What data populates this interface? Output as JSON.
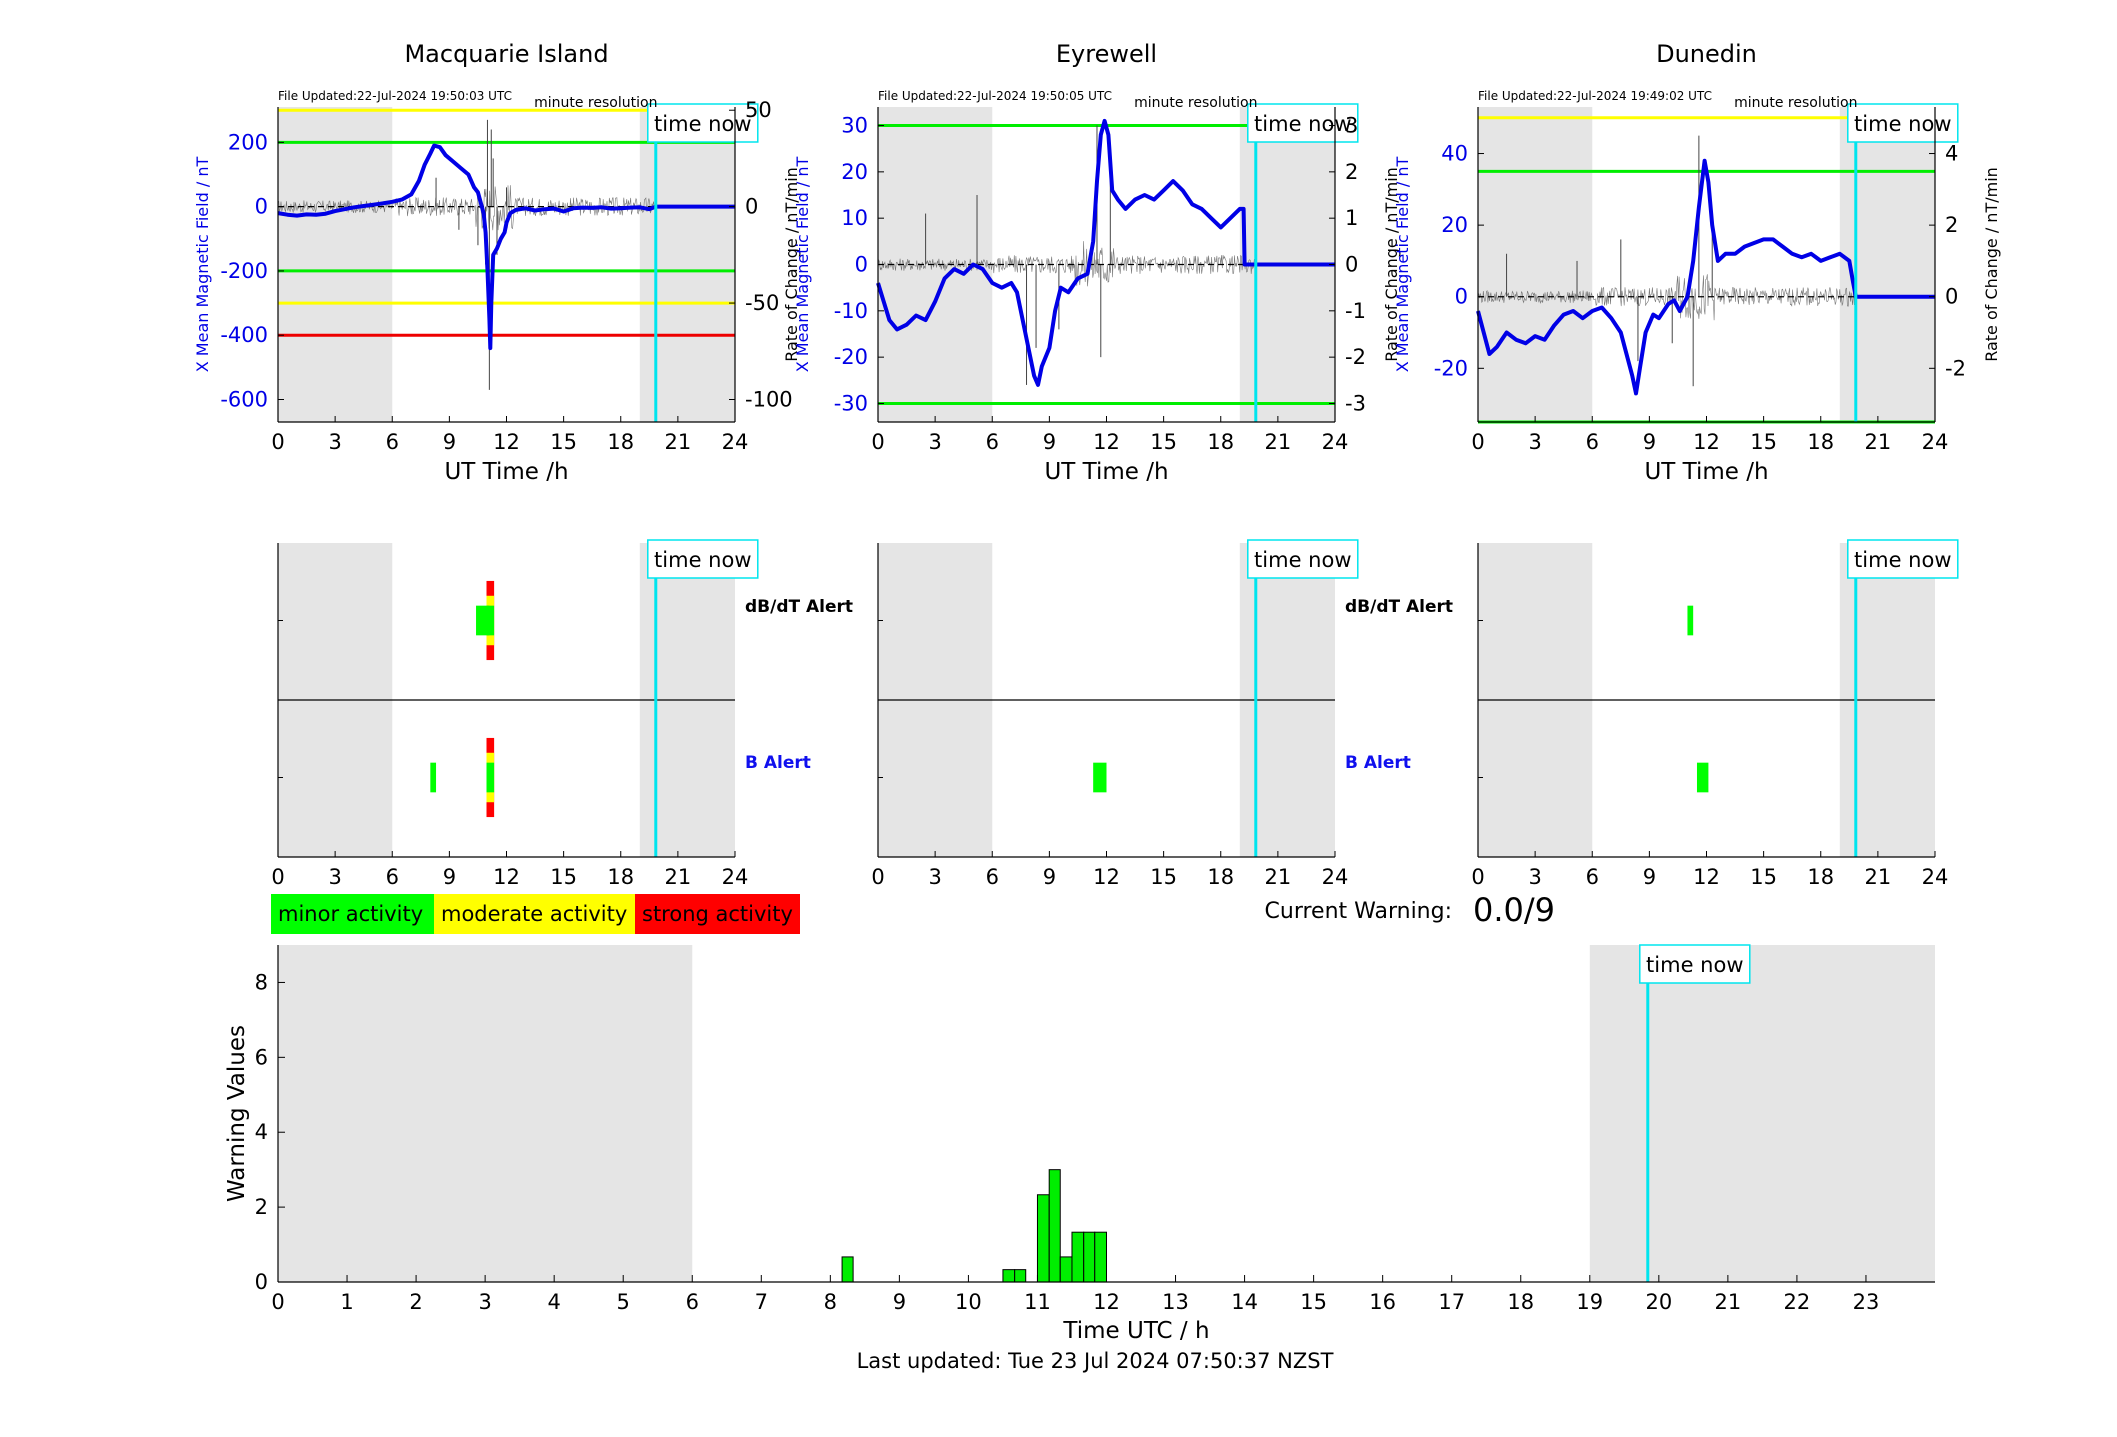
{
  "page": {
    "last_updated": "Last updated: Tue 23 Jul 2024 07:50:37 NZST",
    "current_warning_label": "Current Warning:",
    "current_warning_value": "0.0/9"
  },
  "labels": {
    "time_now": "time now",
    "minute_resolution": "minute resolution",
    "dbdt_alert": "dB/dT Alert",
    "b_alert": "B Alert",
    "ut_time_label": "UT Time /h",
    "rate_label": "Rate of Change / nT/min",
    "field_label": "X Mean Magnetic Field / nT"
  },
  "legend": [
    {
      "label": "minor activity",
      "color": "#00ff00"
    },
    {
      "label": "moderate activity",
      "color": "#ffff00"
    },
    {
      "label": "strong activity",
      "color": "#ff0000"
    }
  ],
  "colors": {
    "field_line": "#0000e6",
    "shade": "#e5e5e5",
    "time_now": "#00e5ee",
    "threshold_green": "#00ee00",
    "threshold_yellow": "#ffff00",
    "threshold_red": "#ee0000",
    "bar_fill": "#00ee00"
  },
  "stations": [
    {
      "name": "Macquarie Island",
      "file_updated": "File Updated:22-Jul-2024 19:50:03 UTC",
      "xlim": [
        0,
        24
      ],
      "xticks": [
        0,
        3,
        6,
        9,
        12,
        15,
        18,
        21,
        24
      ],
      "ylim_field": [
        -670,
        310
      ],
      "yticks_field": [
        200,
        0,
        -200,
        -400,
        -600
      ],
      "ylim_rate": [
        -111.67,
        51.67
      ],
      "yticks_rate": [
        50,
        0,
        -50,
        -100
      ],
      "thresholds_field": [
        {
          "value": 300,
          "color": "yellow"
        },
        {
          "value": 200,
          "color": "green"
        },
        {
          "value": -200,
          "color": "green"
        },
        {
          "value": -300,
          "color": "yellow"
        },
        {
          "value": -400,
          "color": "red"
        }
      ],
      "shade_ranges": [
        [
          0,
          6
        ],
        [
          19.0,
          24
        ]
      ],
      "time_now": 19.84,
      "field_series": [
        [
          0,
          -20
        ],
        [
          0.5,
          -25
        ],
        [
          1,
          -28
        ],
        [
          1.5,
          -24
        ],
        [
          2,
          -25
        ],
        [
          2.5,
          -22
        ],
        [
          3,
          -14
        ],
        [
          3.5,
          -8
        ],
        [
          4,
          -2
        ],
        [
          4.5,
          2
        ],
        [
          5,
          6
        ],
        [
          5.5,
          10
        ],
        [
          6,
          15
        ],
        [
          6.5,
          22
        ],
        [
          7,
          38
        ],
        [
          7.4,
          80
        ],
        [
          7.7,
          130
        ],
        [
          8,
          165
        ],
        [
          8.2,
          190
        ],
        [
          8.5,
          185
        ],
        [
          8.8,
          160
        ],
        [
          9.2,
          140
        ],
        [
          9.6,
          120
        ],
        [
          10,
          100
        ],
        [
          10.3,
          60
        ],
        [
          10.5,
          45
        ],
        [
          10.8,
          -20
        ],
        [
          10.9,
          -80
        ],
        [
          11.0,
          -200
        ],
        [
          11.1,
          -350
        ],
        [
          11.15,
          -440
        ],
        [
          11.2,
          -300
        ],
        [
          11.3,
          -150
        ],
        [
          11.5,
          -130
        ],
        [
          11.7,
          -100
        ],
        [
          11.9,
          -80
        ],
        [
          12,
          -50
        ],
        [
          12.2,
          -20
        ],
        [
          12.5,
          -10
        ],
        [
          13,
          -5
        ],
        [
          13.5,
          -12
        ],
        [
          14,
          -8
        ],
        [
          14.5,
          -6
        ],
        [
          15,
          -15
        ],
        [
          15.5,
          -5
        ],
        [
          16,
          -3
        ],
        [
          16.5,
          -4
        ],
        [
          17,
          -2
        ],
        [
          17.5,
          -6
        ],
        [
          18,
          -5
        ],
        [
          18.5,
          -3
        ],
        [
          19,
          -2
        ],
        [
          19.5,
          -8
        ],
        [
          19.84,
          0
        ],
        [
          24,
          0
        ]
      ],
      "rate_spikes": [
        [
          11.0,
          45
        ],
        [
          11.1,
          -95
        ],
        [
          11.2,
          40
        ],
        [
          10.9,
          -30
        ],
        [
          11.3,
          25
        ],
        [
          10.5,
          -20
        ],
        [
          11.5,
          -25
        ],
        [
          8.3,
          15
        ],
        [
          9.5,
          -12
        ],
        [
          12,
          10
        ]
      ],
      "dbdt_alert_blocks": [
        {
          "t0": 10.4,
          "t1": 11.1,
          "level": "minor",
          "h": 0.45
        },
        {
          "t0": 10.95,
          "t1": 11.35,
          "level": "minor",
          "h": 0.45
        },
        {
          "t0": 10.95,
          "t1": 11.35,
          "level": "moderate",
          "h": 0.75
        },
        {
          "t0": 10.95,
          "t1": 11.35,
          "level": "strong",
          "h": 1.2
        }
      ],
      "b_alert_blocks": [
        {
          "t0": 8.0,
          "t1": 8.3,
          "level": "minor",
          "h": 0.45
        },
        {
          "t0": 10.95,
          "t1": 11.35,
          "level": "minor",
          "h": 0.45
        },
        {
          "t0": 10.95,
          "t1": 11.35,
          "level": "moderate",
          "h": 0.75
        },
        {
          "t0": 10.95,
          "t1": 11.35,
          "level": "strong",
          "h": 1.2
        }
      ],
      "show_alert_labels": true
    },
    {
      "name": "Eyrewell",
      "file_updated": "File Updated:22-Jul-2024 19:50:05 UTC",
      "xlim": [
        0,
        24
      ],
      "xticks": [
        0,
        3,
        6,
        9,
        12,
        15,
        18,
        21,
        24
      ],
      "ylim_field": [
        -34,
        34
      ],
      "yticks_field": [
        30,
        20,
        10,
        0,
        -10,
        -20,
        -30
      ],
      "ylim_rate": [
        -3.4,
        3.4
      ],
      "yticks_rate": [
        3,
        2,
        1,
        0,
        -1,
        -2,
        -3
      ],
      "thresholds_field": [
        {
          "value": 30,
          "color": "green"
        },
        {
          "value": -30,
          "color": "green"
        }
      ],
      "shade_ranges": [
        [
          0,
          6
        ],
        [
          19.0,
          24
        ]
      ],
      "time_now": 19.84,
      "field_series": [
        [
          0,
          -4
        ],
        [
          0.3,
          -8
        ],
        [
          0.6,
          -12
        ],
        [
          1,
          -14
        ],
        [
          1.5,
          -13
        ],
        [
          2,
          -11
        ],
        [
          2.5,
          -12
        ],
        [
          3,
          -8
        ],
        [
          3.5,
          -3
        ],
        [
          4,
          -1
        ],
        [
          4.5,
          -2
        ],
        [
          5,
          0
        ],
        [
          5.5,
          -1
        ],
        [
          6,
          -4
        ],
        [
          6.5,
          -5
        ],
        [
          7,
          -4
        ],
        [
          7.3,
          -6
        ],
        [
          7.6,
          -12
        ],
        [
          7.9,
          -18
        ],
        [
          8.2,
          -24
        ],
        [
          8.4,
          -26
        ],
        [
          8.6,
          -22
        ],
        [
          9,
          -18
        ],
        [
          9.3,
          -10
        ],
        [
          9.6,
          -5
        ],
        [
          10,
          -6
        ],
        [
          10.5,
          -3
        ],
        [
          11,
          -2
        ],
        [
          11.3,
          5
        ],
        [
          11.5,
          18
        ],
        [
          11.7,
          28
        ],
        [
          11.9,
          31
        ],
        [
          12.1,
          28
        ],
        [
          12.3,
          16
        ],
        [
          12.6,
          14
        ],
        [
          13,
          12
        ],
        [
          13.5,
          14
        ],
        [
          14,
          15
        ],
        [
          14.5,
          14
        ],
        [
          15,
          16
        ],
        [
          15.5,
          18
        ],
        [
          16,
          16
        ],
        [
          16.5,
          13
        ],
        [
          17,
          12
        ],
        [
          17.5,
          10
        ],
        [
          18,
          8
        ],
        [
          18.5,
          10
        ],
        [
          19,
          12
        ],
        [
          19.2,
          12
        ],
        [
          19.25,
          0
        ],
        [
          24,
          0
        ]
      ],
      "rate_spikes": [
        [
          11.5,
          3.0
        ],
        [
          11.7,
          -2.0
        ],
        [
          8.3,
          -1.8
        ],
        [
          2.5,
          1.1
        ],
        [
          7.8,
          -2.6
        ],
        [
          12.2,
          2.2
        ],
        [
          5.2,
          1.5
        ],
        [
          9.5,
          -1.4
        ]
      ],
      "dbdt_alert_blocks": [],
      "b_alert_blocks": [
        {
          "t0": 11.3,
          "t1": 12.0,
          "level": "minor",
          "h": 0.45
        }
      ],
      "show_alert_labels": true
    },
    {
      "name": "Dunedin",
      "file_updated": "File Updated:22-Jul-2024 19:49:02 UTC",
      "xlim": [
        0,
        24
      ],
      "xticks": [
        0,
        3,
        6,
        9,
        12,
        15,
        18,
        21,
        24
      ],
      "ylim_field": [
        -35,
        53
      ],
      "yticks_field": [
        40,
        20,
        0,
        -20
      ],
      "ylim_rate": [
        -3.5,
        5.3
      ],
      "yticks_rate": [
        4,
        2,
        0,
        -2
      ],
      "thresholds_field": [
        {
          "value": 50,
          "color": "yellow"
        },
        {
          "value": 35,
          "color": "green"
        },
        {
          "value": -35,
          "color": "green"
        }
      ],
      "shade_ranges": [
        [
          0,
          6
        ],
        [
          19.0,
          24
        ]
      ],
      "time_now": 19.84,
      "field_series": [
        [
          0,
          -4
        ],
        [
          0.3,
          -10
        ],
        [
          0.6,
          -16
        ],
        [
          1,
          -14
        ],
        [
          1.5,
          -10
        ],
        [
          2,
          -12
        ],
        [
          2.5,
          -13
        ],
        [
          3,
          -11
        ],
        [
          3.5,
          -12
        ],
        [
          4,
          -8
        ],
        [
          4.5,
          -5
        ],
        [
          5,
          -4
        ],
        [
          5.5,
          -6
        ],
        [
          6,
          -4
        ],
        [
          6.5,
          -3
        ],
        [
          7,
          -6
        ],
        [
          7.5,
          -10
        ],
        [
          7.8,
          -16
        ],
        [
          8.1,
          -22
        ],
        [
          8.3,
          -27
        ],
        [
          8.5,
          -20
        ],
        [
          8.8,
          -10
        ],
        [
          9.2,
          -5
        ],
        [
          9.5,
          -6
        ],
        [
          10,
          -2
        ],
        [
          10.3,
          -1
        ],
        [
          10.6,
          -4
        ],
        [
          11,
          0
        ],
        [
          11.3,
          10
        ],
        [
          11.6,
          25
        ],
        [
          11.9,
          38
        ],
        [
          12.1,
          32
        ],
        [
          12.3,
          20
        ],
        [
          12.6,
          10
        ],
        [
          13,
          12
        ],
        [
          13.5,
          12
        ],
        [
          14,
          14
        ],
        [
          14.5,
          15
        ],
        [
          15,
          16
        ],
        [
          15.5,
          16
        ],
        [
          16,
          14
        ],
        [
          16.5,
          12
        ],
        [
          17,
          11
        ],
        [
          17.5,
          12
        ],
        [
          18,
          10
        ],
        [
          18.5,
          11
        ],
        [
          19,
          12
        ],
        [
          19.5,
          10
        ],
        [
          19.7,
          4
        ],
        [
          19.84,
          0
        ],
        [
          24,
          0
        ]
      ],
      "rate_spikes": [
        [
          11.6,
          4.5
        ],
        [
          11.3,
          -2.5
        ],
        [
          8.4,
          -1.8
        ],
        [
          1.5,
          1.2
        ],
        [
          7.5,
          1.6
        ],
        [
          12.3,
          2.4
        ],
        [
          10.2,
          -1.3
        ],
        [
          5.2,
          1.0
        ]
      ],
      "dbdt_alert_blocks": [
        {
          "t0": 11.0,
          "t1": 11.3,
          "level": "minor",
          "h": 0.45
        }
      ],
      "b_alert_blocks": [
        {
          "t0": 11.5,
          "t1": 12.1,
          "level": "minor",
          "h": 0.45
        }
      ],
      "show_alert_labels": false
    }
  ],
  "chart_data": [
    {
      "type": "bar",
      "title": "Warning Values",
      "xlabel": "Time UTC / h",
      "ylabel": "Warning Values",
      "xlim": [
        0,
        24
      ],
      "ylim": [
        0,
        9
      ],
      "xticks": [
        0,
        1,
        2,
        3,
        4,
        5,
        6,
        7,
        8,
        9,
        10,
        11,
        12,
        13,
        14,
        15,
        16,
        17,
        18,
        19,
        20,
        21,
        22,
        23
      ],
      "yticks": [
        0,
        2,
        4,
        6,
        8
      ],
      "shade_ranges": [
        [
          0,
          6
        ],
        [
          19.0,
          24
        ]
      ],
      "time_now": 19.84,
      "bars": [
        {
          "x0": 8.17,
          "x1": 8.33,
          "value": 0.67
        },
        {
          "x0": 10.5,
          "x1": 10.67,
          "value": 0.33
        },
        {
          "x0": 10.67,
          "x1": 10.83,
          "value": 0.33
        },
        {
          "x0": 11.0,
          "x1": 11.17,
          "value": 2.33
        },
        {
          "x0": 11.17,
          "x1": 11.33,
          "value": 3.0
        },
        {
          "x0": 11.33,
          "x1": 11.5,
          "value": 0.67
        },
        {
          "x0": 11.5,
          "x1": 11.67,
          "value": 1.33
        },
        {
          "x0": 11.67,
          "x1": 11.83,
          "value": 1.33
        },
        {
          "x0": 11.83,
          "x1": 12.0,
          "value": 1.33
        }
      ]
    }
  ]
}
